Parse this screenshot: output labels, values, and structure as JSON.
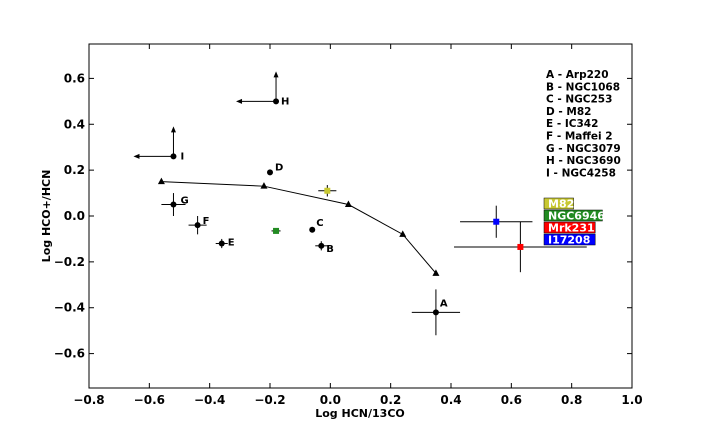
{
  "chart_data": {
    "type": "scatter",
    "xlabel": "Log HCN/13CO",
    "ylabel": "Log HCO+/HCN",
    "xlim": [
      -0.8,
      1.0
    ],
    "ylim": [
      -0.75,
      0.75
    ],
    "x_ticks": [
      {
        "value": -0.8,
        "label": "−0.8"
      },
      {
        "value": -0.6,
        "label": "−0.6"
      },
      {
        "value": -0.4,
        "label": "−0.4"
      },
      {
        "value": -0.2,
        "label": "−0.2"
      },
      {
        "value": 0.0,
        "label": "0.0"
      },
      {
        "value": 0.2,
        "label": "0.2"
      },
      {
        "value": 0.4,
        "label": "0.4"
      },
      {
        "value": 0.6,
        "label": "0.6"
      },
      {
        "value": 0.8,
        "label": "0.8"
      },
      {
        "value": 1.0,
        "label": "1.0"
      }
    ],
    "y_ticks": [
      {
        "value": -0.6,
        "label": "−0.6"
      },
      {
        "value": -0.4,
        "label": "−0.4"
      },
      {
        "value": -0.2,
        "label": "−0.2"
      },
      {
        "value": 0.0,
        "label": "0.0"
      },
      {
        "value": 0.2,
        "label": "0.2"
      },
      {
        "value": 0.4,
        "label": "0.4"
      },
      {
        "value": 0.6,
        "label": "0.6"
      }
    ],
    "grid": false,
    "model_curve": {
      "x": [
        -0.56,
        -0.22,
        0.06,
        0.24,
        0.35
      ],
      "y": [
        0.15,
        0.13,
        0.05,
        -0.08,
        -0.25
      ]
    },
    "points": [
      {
        "label": "A",
        "x": 0.35,
        "y": -0.42,
        "xerr": 0.08,
        "yerr": 0.1,
        "color": "#000000"
      },
      {
        "label": "B",
        "x": -0.03,
        "y": -0.13,
        "xerr": 0.02,
        "yerr": 0.02,
        "color": "#000000"
      },
      {
        "label": "C",
        "x": -0.06,
        "y": -0.06,
        "xerr": 0.0,
        "yerr": 0.0,
        "color": "#000000"
      },
      {
        "label": "D",
        "x": -0.2,
        "y": 0.19,
        "xerr": 0.0,
        "yerr": 0.0,
        "color": "#000000"
      },
      {
        "label": "E",
        "x": -0.36,
        "y": -0.12,
        "xerr": 0.02,
        "yerr": 0.02,
        "color": "#000000"
      },
      {
        "label": "F",
        "x": -0.44,
        "y": -0.04,
        "xerr": 0.03,
        "yerr": 0.04,
        "color": "#000000"
      },
      {
        "label": "G",
        "x": -0.52,
        "y": 0.05,
        "xerr": 0.04,
        "yerr": 0.05,
        "color": "#000000"
      },
      {
        "label": "H",
        "x": -0.18,
        "y": 0.5,
        "limit_x": "upper",
        "limit_y": "lower",
        "color": "#000000"
      },
      {
        "label": "I",
        "x": -0.52,
        "y": 0.26,
        "limit_x": "upper",
        "limit_y": "lower",
        "color": "#000000"
      },
      {
        "label": "",
        "x": -0.18,
        "y": -0.065,
        "xerr": 0.015,
        "yerr": 0.01,
        "color": "#228b22"
      },
      {
        "label": "",
        "x": -0.01,
        "y": 0.11,
        "xerr": 0.03,
        "yerr": 0.025,
        "color": "#c8c832"
      },
      {
        "label": "",
        "x": 0.55,
        "y": -0.025,
        "xerr": 0.12,
        "yerr": 0.07,
        "color": "#0000ff"
      },
      {
        "label": "",
        "x": 0.63,
        "y": -0.135,
        "xerr": 0.22,
        "yerr": 0.11,
        "color": "#ff0000"
      }
    ],
    "legend": {
      "placement": "top-right",
      "entries": [
        "A - Arp220",
        "B - NGC1068",
        "C - NGC253",
        "D - M82",
        "E - IC342",
        "F - Maffei 2",
        "G - NGC3079",
        "H - NGC3690",
        "I - NGC4258"
      ]
    },
    "badges": [
      {
        "label": "M82",
        "color": "#c8c832"
      },
      {
        "label": "NGC6946",
        "color": "#228b22"
      },
      {
        "label": "Mrk231",
        "color": "#ff0000"
      },
      {
        "label": "I17208",
        "color": "#0000ff"
      }
    ]
  }
}
